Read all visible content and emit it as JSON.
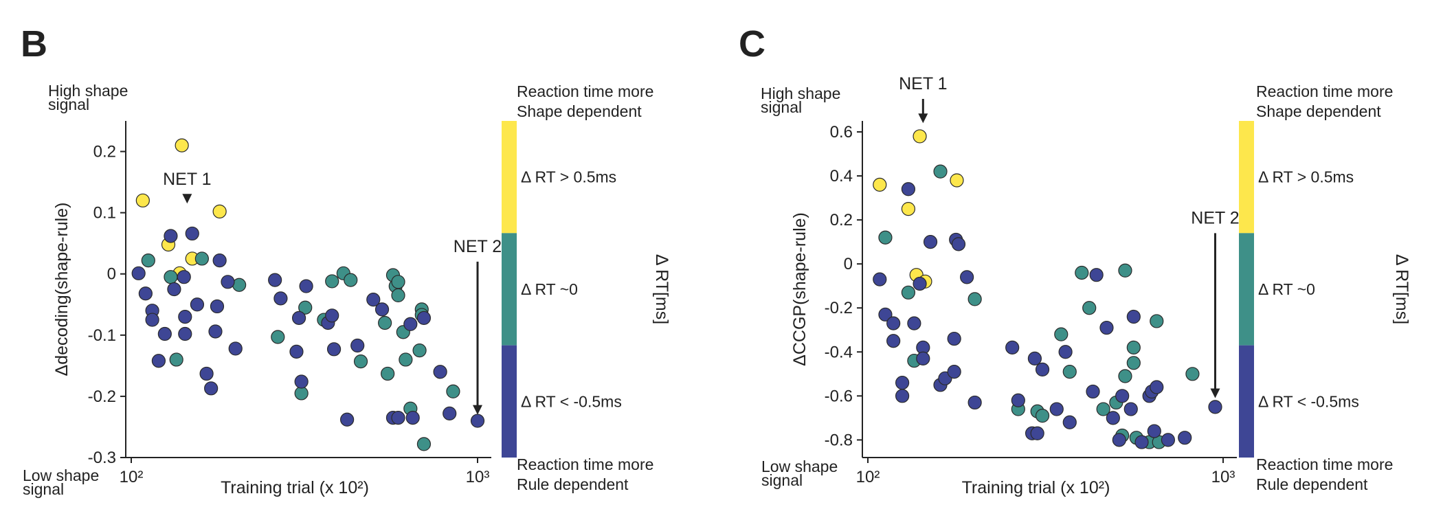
{
  "colors": {
    "high": "#fde74c",
    "mid": "#3e9088",
    "low": "#3e4695",
    "axis": "#222222"
  },
  "chart_data": [
    {
      "type": "scatter",
      "panel": "B",
      "xlabel": "Training trial (x 10²)",
      "ylabel": "Δdecoding(shape-rule)",
      "x_scale": "log",
      "xlim": [
        100,
        1000
      ],
      "ylim": [
        -0.3,
        0.25
      ],
      "xticks": [
        {
          "value": 100,
          "label": "10²"
        },
        {
          "value": 1000,
          "label": "10³"
        }
      ],
      "yticks": [
        {
          "value": 0.2,
          "label": "0.2"
        },
        {
          "value": 0.1,
          "label": "0.1"
        },
        {
          "value": 0,
          "label": "0"
        },
        {
          "value": -0.1,
          "label": "-0.1"
        },
        {
          "value": -0.2,
          "label": "-0.2"
        },
        {
          "value": -0.3,
          "label": "-0.3"
        }
      ],
      "top_note": [
        "High shape",
        "signal"
      ],
      "bottom_note": [
        "Low shape",
        "signal"
      ],
      "annotations": [
        {
          "text": "NET 1",
          "x": 145,
          "y_from": 0.13,
          "y_to": 0.115
        },
        {
          "text": "NET 2",
          "x": 1000,
          "y_from": 0.02,
          "y_to": -0.23
        }
      ],
      "series": [
        {
          "group": "high",
          "points": [
            [
              108,
              0.12
            ],
            [
              140,
              0.21
            ],
            [
              128,
              0.048
            ],
            [
              138,
              0.001
            ],
            [
              150,
              0.025
            ],
            [
              180,
              0.102
            ]
          ]
        },
        {
          "group": "mid",
          "points": [
            [
              112,
              0.022
            ],
            [
              130,
              -0.005
            ],
            [
              135,
              -0.14
            ],
            [
              160,
              0.025
            ],
            [
              205,
              -0.018
            ],
            [
              265,
              -0.103
            ],
            [
              310,
              -0.195
            ],
            [
              318,
              -0.055
            ],
            [
              360,
              -0.075
            ],
            [
              380,
              -0.012
            ],
            [
              410,
              0.001
            ],
            [
              430,
              -0.01
            ],
            [
              460,
              -0.143
            ],
            [
              540,
              -0.08
            ],
            [
              550,
              -0.163
            ],
            [
              570,
              -0.002
            ],
            [
              580,
              -0.02
            ],
            [
              590,
              -0.035
            ],
            [
              590,
              -0.013
            ],
            [
              610,
              -0.095
            ],
            [
              620,
              -0.14
            ],
            [
              640,
              -0.22
            ],
            [
              680,
              -0.125
            ],
            [
              690,
              -0.058
            ],
            [
              690,
              -0.067
            ],
            [
              700,
              -0.278
            ],
            [
              850,
              -0.192
            ]
          ]
        },
        {
          "group": "low",
          "points": [
            [
              105,
              0.001
            ],
            [
              110,
              -0.032
            ],
            [
              115,
              -0.06
            ],
            [
              115,
              -0.075
            ],
            [
              120,
              -0.142
            ],
            [
              125,
              -0.098
            ],
            [
              130,
              0.062
            ],
            [
              133,
              -0.025
            ],
            [
              142,
              -0.005
            ],
            [
              143,
              -0.07
            ],
            [
              143,
              -0.098
            ],
            [
              150,
              0.066
            ],
            [
              155,
              -0.05
            ],
            [
              165,
              -0.163
            ],
            [
              170,
              -0.187
            ],
            [
              175,
              -0.094
            ],
            [
              177,
              -0.053
            ],
            [
              180,
              0.022
            ],
            [
              190,
              -0.013
            ],
            [
              200,
              -0.122
            ],
            [
              260,
              -0.01
            ],
            [
              270,
              -0.04
            ],
            [
              300,
              -0.127
            ],
            [
              305,
              -0.072
            ],
            [
              310,
              -0.176
            ],
            [
              320,
              -0.02
            ],
            [
              370,
              -0.08
            ],
            [
              380,
              -0.068
            ],
            [
              385,
              -0.123
            ],
            [
              420,
              -0.238
            ],
            [
              450,
              -0.117
            ],
            [
              500,
              -0.042
            ],
            [
              530,
              -0.058
            ],
            [
              570,
              -0.235
            ],
            [
              590,
              -0.235
            ],
            [
              640,
              -0.082
            ],
            [
              650,
              -0.235
            ],
            [
              700,
              -0.072
            ],
            [
              780,
              -0.16
            ],
            [
              830,
              -0.228
            ],
            [
              1000,
              -0.24
            ]
          ]
        }
      ],
      "colorbar": {
        "top_caption": [
          "Reaction time more",
          "Shape dependent"
        ],
        "bottom_caption": [
          "Reaction time more",
          "Rule dependent"
        ],
        "title": "Δ RT[ms]",
        "bands": [
          {
            "group": "high",
            "label": "Δ RT > 0.5ms"
          },
          {
            "group": "mid",
            "label": "Δ RT ~0"
          },
          {
            "group": "low",
            "label": "Δ RT < -0.5ms"
          }
        ]
      }
    },
    {
      "type": "scatter",
      "panel": "C",
      "xlabel": "Training trial (x 10²)",
      "ylabel": "ΔCCGP(shape-rule)",
      "x_scale": "log",
      "xlim": [
        100,
        1000
      ],
      "ylim": [
        -0.88,
        0.65
      ],
      "xticks": [
        {
          "value": 100,
          "label": "10²"
        },
        {
          "value": 1000,
          "label": "10³"
        }
      ],
      "yticks": [
        {
          "value": 0.6,
          "label": "0.6"
        },
        {
          "value": 0.4,
          "label": "0.4"
        },
        {
          "value": 0.2,
          "label": "0.2"
        },
        {
          "value": 0,
          "label": "0"
        },
        {
          "value": -0.2,
          "label": "-0.2"
        },
        {
          "value": -0.4,
          "label": "-0.4"
        },
        {
          "value": -0.6,
          "label": "-0.6"
        },
        {
          "value": -0.8,
          "label": "-0.8"
        }
      ],
      "top_note": [
        "High shape",
        "signal"
      ],
      "bottom_note": [
        "Low shape",
        "signal"
      ],
      "annotations": [
        {
          "text": "NET 1",
          "x": 143,
          "y_from": 0.75,
          "y_to": 0.64
        },
        {
          "text": "NET 2",
          "x": 950,
          "y_from": 0.14,
          "y_to": -0.61
        }
      ],
      "series": [
        {
          "group": "high",
          "points": [
            [
              108,
              0.36
            ],
            [
              140,
              0.58
            ],
            [
              130,
              0.25
            ],
            [
              137,
              -0.05
            ],
            [
              145,
              -0.08
            ],
            [
              178,
              0.38
            ]
          ]
        },
        {
          "group": "mid",
          "points": [
            [
              112,
              0.12
            ],
            [
              130,
              -0.13
            ],
            [
              135,
              -0.44
            ],
            [
              160,
              0.42
            ],
            [
              200,
              -0.16
            ],
            [
              265,
              -0.66
            ],
            [
              300,
              -0.67
            ],
            [
              310,
              -0.69
            ],
            [
              350,
              -0.32
            ],
            [
              370,
              -0.49
            ],
            [
              400,
              -0.04
            ],
            [
              420,
              -0.2
            ],
            [
              460,
              -0.66
            ],
            [
              500,
              -0.63
            ],
            [
              520,
              -0.78
            ],
            [
              530,
              -0.03
            ],
            [
              530,
              -0.51
            ],
            [
              560,
              -0.38
            ],
            [
              560,
              -0.45
            ],
            [
              570,
              -0.79
            ],
            [
              620,
              -0.81
            ],
            [
              650,
              -0.26
            ],
            [
              660,
              -0.81
            ],
            [
              820,
              -0.5
            ]
          ]
        },
        {
          "group": "low",
          "points": [
            [
              108,
              -0.07
            ],
            [
              112,
              -0.23
            ],
            [
              118,
              -0.27
            ],
            [
              118,
              -0.35
            ],
            [
              125,
              -0.54
            ],
            [
              125,
              -0.6
            ],
            [
              130,
              0.34
            ],
            [
              135,
              -0.27
            ],
            [
              140,
              -0.09
            ],
            [
              143,
              -0.38
            ],
            [
              143,
              -0.43
            ],
            [
              150,
              0.1
            ],
            [
              160,
              -0.55
            ],
            [
              165,
              -0.52
            ],
            [
              175,
              -0.34
            ],
            [
              175,
              -0.49
            ],
            [
              177,
              0.11
            ],
            [
              180,
              0.09
            ],
            [
              190,
              -0.06
            ],
            [
              200,
              -0.63
            ],
            [
              255,
              -0.38
            ],
            [
              265,
              -0.62
            ],
            [
              290,
              -0.77
            ],
            [
              295,
              -0.43
            ],
            [
              300,
              -0.77
            ],
            [
              310,
              -0.48
            ],
            [
              340,
              -0.66
            ],
            [
              360,
              -0.4
            ],
            [
              370,
              -0.72
            ],
            [
              430,
              -0.58
            ],
            [
              440,
              -0.05
            ],
            [
              470,
              -0.29
            ],
            [
              490,
              -0.7
            ],
            [
              510,
              -0.8
            ],
            [
              520,
              -0.6
            ],
            [
              550,
              -0.66
            ],
            [
              560,
              -0.24
            ],
            [
              590,
              -0.81
            ],
            [
              620,
              -0.6
            ],
            [
              630,
              -0.58
            ],
            [
              640,
              -0.76
            ],
            [
              650,
              -0.56
            ],
            [
              700,
              -0.8
            ],
            [
              780,
              -0.79
            ],
            [
              950,
              -0.65
            ]
          ]
        }
      ],
      "colorbar": {
        "top_caption": [
          "Reaction time more",
          "Shape dependent"
        ],
        "bottom_caption": [
          "Reaction time more",
          "Rule dependent"
        ],
        "title": "Δ RT[ms]",
        "bands": [
          {
            "group": "high",
            "label": "Δ RT > 0.5ms"
          },
          {
            "group": "mid",
            "label": "Δ RT ~0"
          },
          {
            "group": "low",
            "label": "Δ RT < -0.5ms"
          }
        ]
      }
    }
  ]
}
